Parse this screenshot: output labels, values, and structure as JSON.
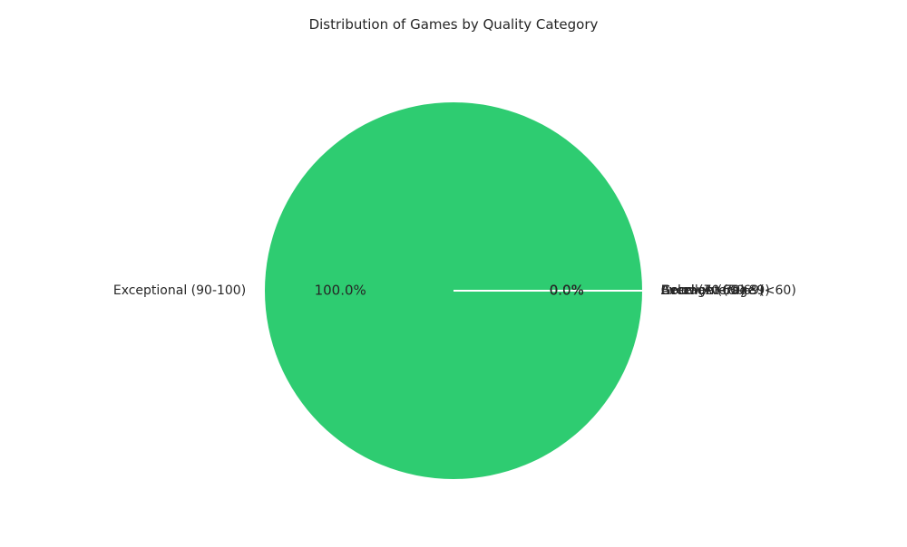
{
  "chart_data": {
    "type": "pie",
    "title": "Distribution of Games by Quality Category",
    "categories": [
      "Exceptional (90-100)",
      "Excellent (80-89)",
      "Good (70-79)",
      "Average (60-69)",
      "Below Average (<60)"
    ],
    "values": [
      100.0,
      0.0,
      0.0,
      0.0,
      0.0
    ],
    "value_labels": [
      "100.0%",
      "0.0%",
      "0.0%",
      "0.0%",
      "0.0%"
    ],
    "colors": [
      "#2ecc71",
      "#3498db",
      "#f1c40f",
      "#e67e22",
      "#e74c3c"
    ],
    "start_angle_deg": 0,
    "direction": "counterclockwise",
    "edge_color": "#ffffff"
  }
}
